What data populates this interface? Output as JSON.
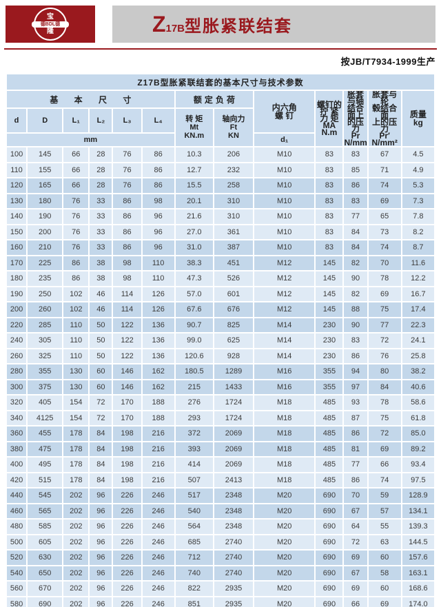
{
  "colors": {
    "brand_red": "#9a191e",
    "banner_gray": "#c9c9c9",
    "title_bg": "#c6d9ec",
    "header_bg": "#cadcee",
    "row_light": "#dfeaf5",
    "row_dark": "#c3d7ea"
  },
  "header": {
    "logo": {
      "top": "宝",
      "middle": "德BDL德",
      "bottom": "隆"
    },
    "banner_title": {
      "model_prefix": "Z",
      "model_sub": "17B",
      "model_suffix": "型胀紧联结套"
    },
    "production_note": "按JB/T7934-1999生产"
  },
  "table": {
    "title": "Z17B型胀紧联结套的基本尺寸与技术参数",
    "header": {
      "basic_dims": "基 本 尺 寸",
      "rated_load": "额定负荷",
      "hex_screw": "内六角\n螺  钉",
      "letters": [
        "d",
        "D",
        "L₁",
        "L₂",
        "L₃",
        "L₄"
      ],
      "torque": "转 矩\nMt\nKN.m",
      "axial_force": "轴向力\nFt\nKN",
      "mm": "mm",
      "d1": "d₁",
      "tightening_torque": "螺钉的\n拧 紧\n力 矩\nMA\nN.m",
      "shaft_pressure": "胀套与轴\n结合面上\n的压力\nPr\nN/mm²",
      "hub_pressure": "胀套与轮\n毂结合面\n上的压力\nPr′\nN/mm²",
      "mass": "质量\nkg"
    },
    "rows": [
      [
        "100",
        "145",
        "66",
        "28",
        "76",
        "86",
        "10.3",
        "206",
        "M10",
        "83",
        "83",
        "67",
        "4.5"
      ],
      [
        "110",
        "155",
        "66",
        "28",
        "76",
        "86",
        "12.7",
        "232",
        "M10",
        "83",
        "85",
        "71",
        "4.9"
      ],
      [
        "120",
        "165",
        "66",
        "28",
        "76",
        "86",
        "15.5",
        "258",
        "M10",
        "83",
        "86",
        "74",
        "5.3"
      ],
      [
        "130",
        "180",
        "76",
        "33",
        "86",
        "98",
        "20.1",
        "310",
        "M10",
        "83",
        "83",
        "69",
        "7.3"
      ],
      [
        "140",
        "190",
        "76",
        "33",
        "86",
        "96",
        "21.6",
        "310",
        "M10",
        "83",
        "77",
        "65",
        "7.8"
      ],
      [
        "150",
        "200",
        "76",
        "33",
        "86",
        "96",
        "27.0",
        "361",
        "M10",
        "83",
        "84",
        "73",
        "8.2"
      ],
      [
        "160",
        "210",
        "76",
        "33",
        "86",
        "96",
        "31.0",
        "387",
        "M10",
        "83",
        "84",
        "74",
        "8.7"
      ],
      [
        "170",
        "225",
        "86",
        "38",
        "98",
        "110",
        "38.3",
        "451",
        "M12",
        "145",
        "82",
        "70",
        "11.6"
      ],
      [
        "180",
        "235",
        "86",
        "38",
        "98",
        "110",
        "47.3",
        "526",
        "M12",
        "145",
        "90",
        "78",
        "12.2"
      ],
      [
        "190",
        "250",
        "102",
        "46",
        "114",
        "126",
        "57.0",
        "601",
        "M12",
        "145",
        "82",
        "69",
        "16.7"
      ],
      [
        "200",
        "260",
        "102",
        "46",
        "114",
        "126",
        "67.6",
        "676",
        "M12",
        "145",
        "88",
        "75",
        "17.4"
      ],
      [
        "220",
        "285",
        "110",
        "50",
        "122",
        "136",
        "90.7",
        "825",
        "M14",
        "230",
        "90",
        "77",
        "22.3"
      ],
      [
        "240",
        "305",
        "110",
        "50",
        "122",
        "136",
        "99.0",
        "625",
        "M14",
        "230",
        "83",
        "72",
        "24.1"
      ],
      [
        "260",
        "325",
        "110",
        "50",
        "122",
        "136",
        "120.6",
        "928",
        "M14",
        "230",
        "86",
        "76",
        "25.8"
      ],
      [
        "280",
        "355",
        "130",
        "60",
        "146",
        "162",
        "180.5",
        "1289",
        "M16",
        "355",
        "94",
        "80",
        "38.2"
      ],
      [
        "300",
        "375",
        "130",
        "60",
        "146",
        "162",
        "215",
        "1433",
        "M16",
        "355",
        "97",
        "84",
        "40.6"
      ],
      [
        "320",
        "405",
        "154",
        "72",
        "170",
        "188",
        "276",
        "1724",
        "M18",
        "485",
        "93",
        "78",
        "58.6"
      ],
      [
        "340",
        "4125",
        "154",
        "72",
        "170",
        "188",
        "293",
        "1724",
        "M18",
        "485",
        "87",
        "75",
        "61.8"
      ],
      [
        "360",
        "455",
        "178",
        "84",
        "198",
        "216",
        "372",
        "2069",
        "M18",
        "485",
        "86",
        "72",
        "85.0"
      ],
      [
        "380",
        "475",
        "178",
        "84",
        "198",
        "216",
        "393",
        "2069",
        "M18",
        "485",
        "81",
        "69",
        "89.2"
      ],
      [
        "400",
        "495",
        "178",
        "84",
        "198",
        "216",
        "414",
        "2069",
        "M18",
        "485",
        "77",
        "66",
        "93.4"
      ],
      [
        "420",
        "515",
        "178",
        "84",
        "198",
        "216",
        "507",
        "2413",
        "M18",
        "485",
        "86",
        "74",
        "97.5"
      ],
      [
        "440",
        "545",
        "202",
        "96",
        "226",
        "246",
        "517",
        "2348",
        "M20",
        "690",
        "70",
        "59",
        "128.9"
      ],
      [
        "460",
        "565",
        "202",
        "96",
        "226",
        "246",
        "540",
        "2348",
        "M20",
        "690",
        "67",
        "57",
        "134.1"
      ],
      [
        "480",
        "585",
        "202",
        "96",
        "226",
        "246",
        "564",
        "2348",
        "M20",
        "690",
        "64",
        "55",
        "139.3"
      ],
      [
        "500",
        "605",
        "202",
        "96",
        "226",
        "246",
        "685",
        "2740",
        "M20",
        "690",
        "72",
        "63",
        "144.5"
      ],
      [
        "520",
        "630",
        "202",
        "96",
        "226",
        "246",
        "712",
        "2740",
        "M20",
        "690",
        "69",
        "60",
        "157.6"
      ],
      [
        "540",
        "650",
        "202",
        "96",
        "226",
        "246",
        "740",
        "2740",
        "M20",
        "690",
        "67",
        "58",
        "163.1"
      ],
      [
        "560",
        "670",
        "202",
        "96",
        "226",
        "246",
        "822",
        "2935",
        "M20",
        "690",
        "69",
        "60",
        "168.6"
      ],
      [
        "580",
        "690",
        "202",
        "96",
        "226",
        "246",
        "851",
        "2935",
        "M20",
        "690",
        "66",
        "69",
        "174.0"
      ]
    ]
  }
}
